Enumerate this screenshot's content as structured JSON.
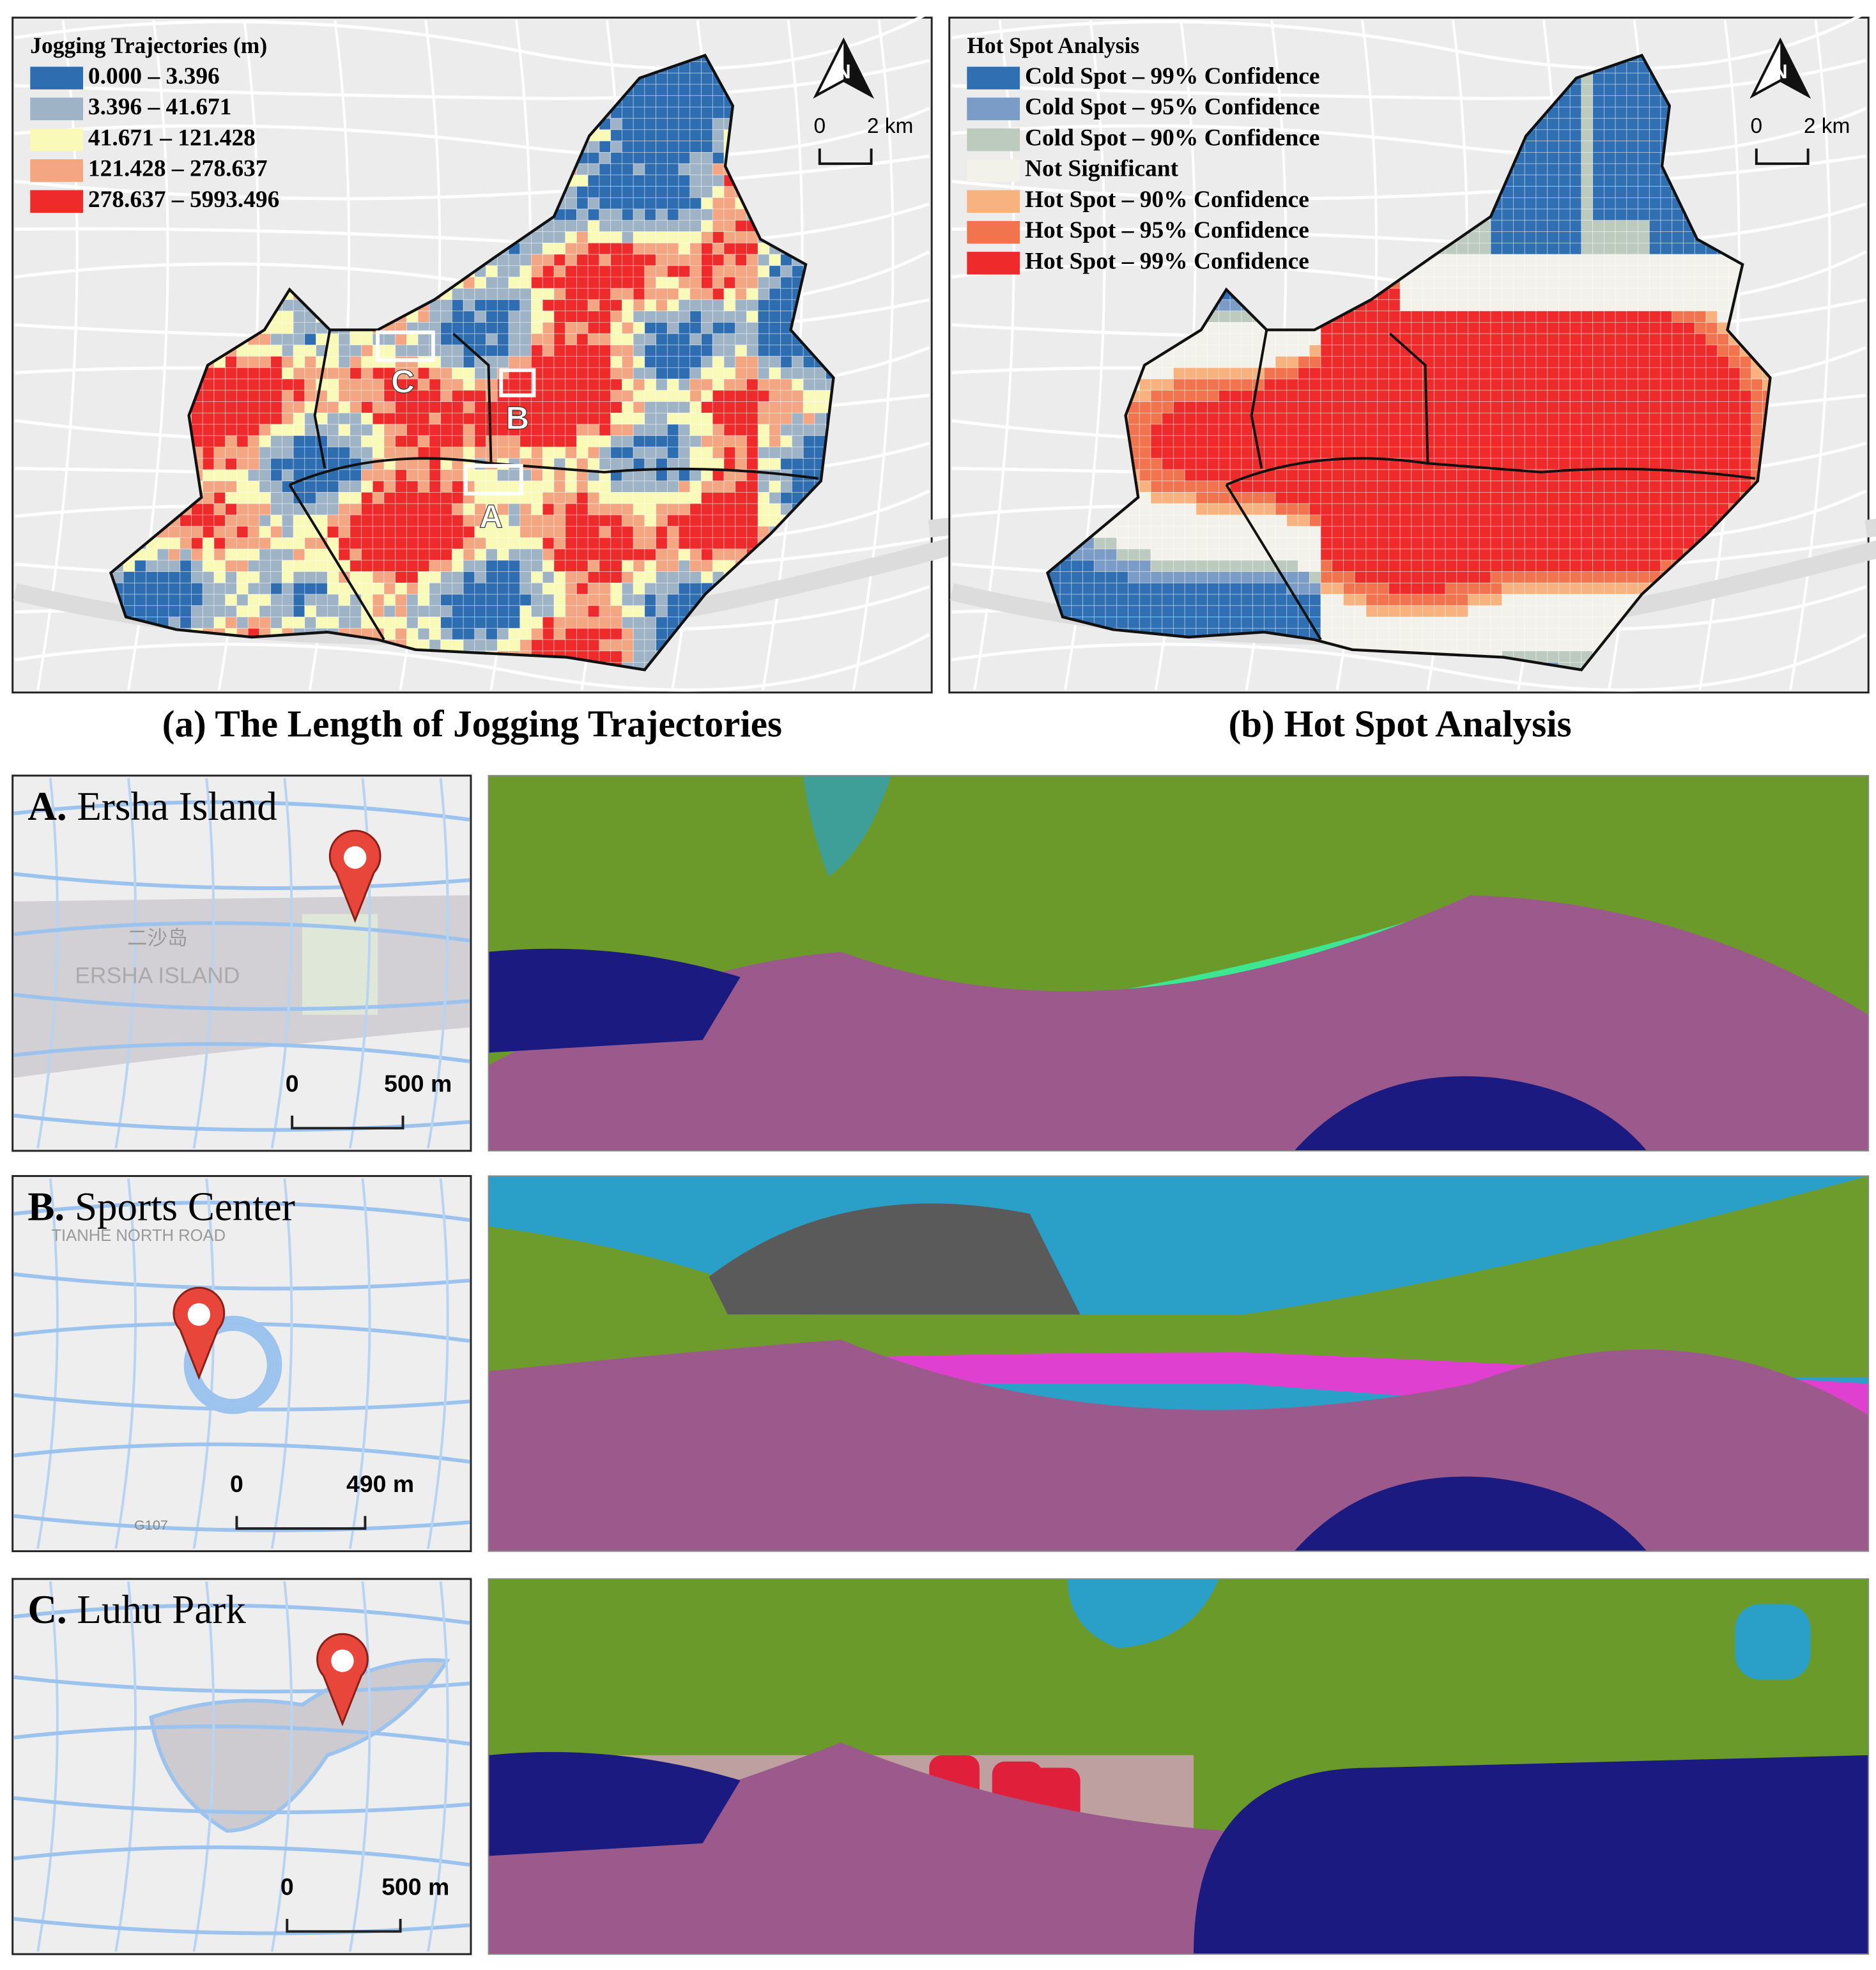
{
  "panel_a": {
    "legend_title": "Jogging Trajectories (m)",
    "legend": [
      {
        "label": "0.000 – 3.396",
        "color": "#2e6db0"
      },
      {
        "label": "3.396 – 41.671",
        "color": "#9fb3c6"
      },
      {
        "label": "41.671 – 121.428",
        "color": "#fafab8"
      },
      {
        "label": "121.428 – 278.637",
        "color": "#f4a582"
      },
      {
        "label": "278.637 – 5993.496",
        "color": "#ee2a2a"
      }
    ],
    "north": "N",
    "scale": [
      "0",
      "2 km"
    ],
    "sites": [
      "A",
      "B",
      "C"
    ],
    "caption": "(a) The Length of Jogging Trajectories"
  },
  "panel_b": {
    "legend_title": "Hot Spot Analysis",
    "legend": [
      {
        "label": "Cold Spot – 99% Confidence",
        "color": "#2f6fb2"
      },
      {
        "label": "Cold Spot – 95% Confidence",
        "color": "#7a9cc6"
      },
      {
        "label": "Cold Spot – 90% Confidence",
        "color": "#bccbbd"
      },
      {
        "label": "Not Significant",
        "color": "#f2f2ea"
      },
      {
        "label": "Hot Spot – 90% Confidence",
        "color": "#f7b27f"
      },
      {
        "label": "Hot Spot – 95% Confidence",
        "color": "#f2744f"
      },
      {
        "label": "Hot Spot – 99% Confidence",
        "color": "#ee2a2a"
      }
    ],
    "north": "N",
    "scale": [
      "0",
      "2 km"
    ],
    "caption": "(b) Hot Spot Analysis"
  },
  "sites": [
    {
      "letter": "A.",
      "name": "Ersha Island",
      "scale": [
        "0",
        "500 m"
      ],
      "map_labels": [
        "二沙岛",
        "ERSHA ISLAND"
      ]
    },
    {
      "letter": "B.",
      "name": "Sports Center",
      "scale": [
        "0",
        "490 m"
      ],
      "map_labels": [
        "TIANHE NORTH ROAD",
        "G107"
      ]
    },
    {
      "letter": "C.",
      "name": "Luhu Park",
      "scale": [
        "0",
        "500 m"
      ]
    }
  ]
}
